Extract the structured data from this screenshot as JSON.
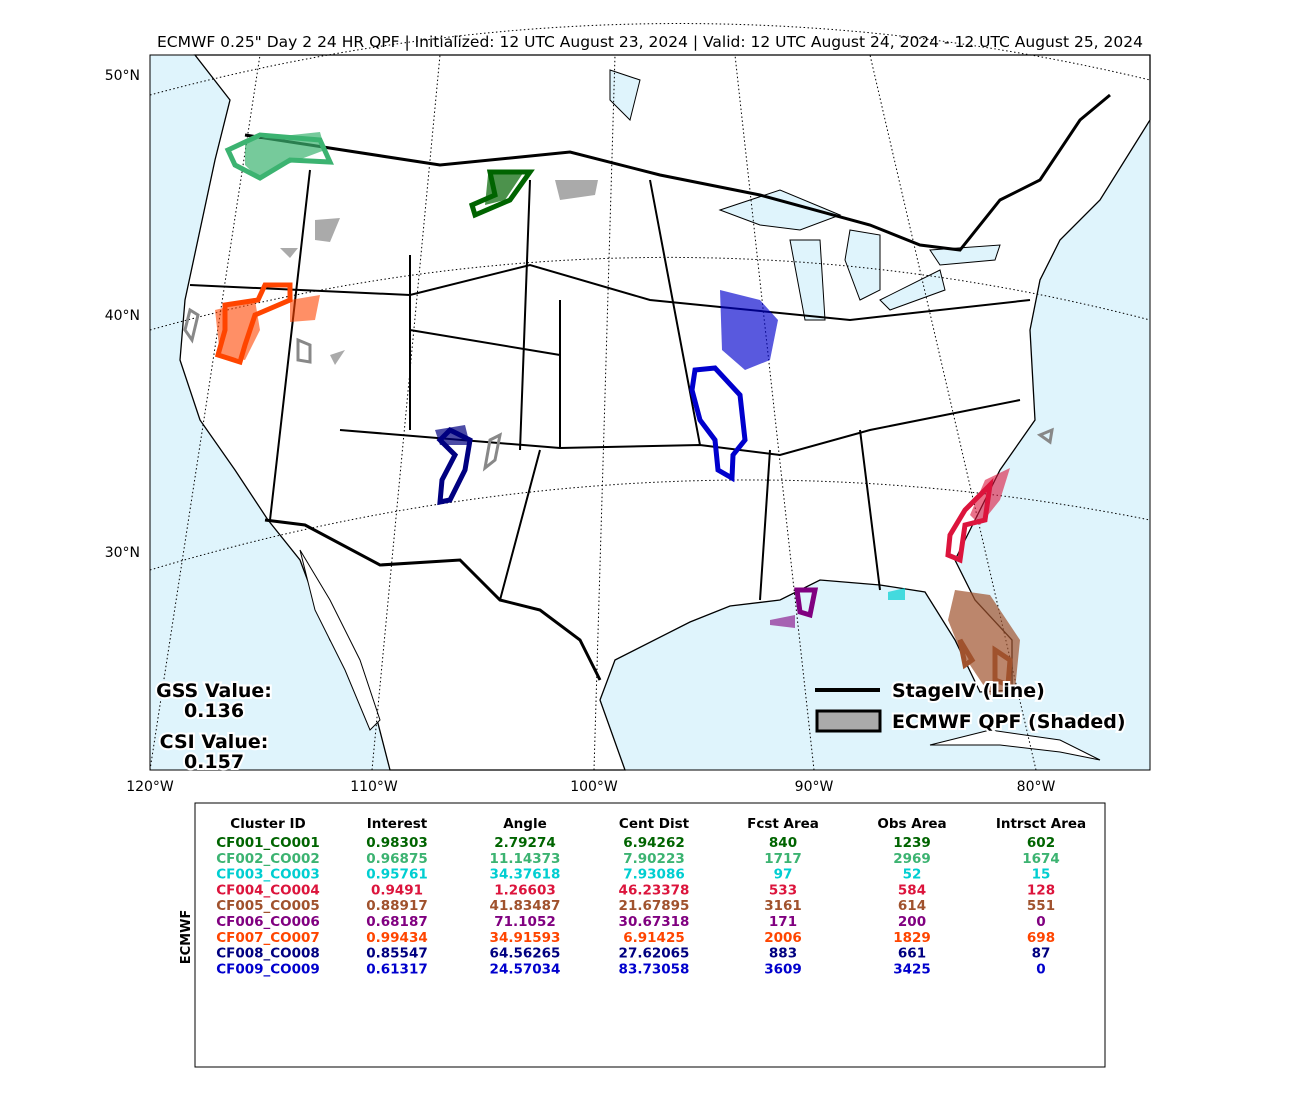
{
  "title": "ECMWF 0.25\" Day 2 24 HR QPF | Initialized: 12 UTC August 23, 2024 | Valid: 12 UTC August 24, 2024 - 12 UTC August 25, 2024",
  "map": {
    "lat_labels": [
      "50°N",
      "40°N",
      "30°N"
    ],
    "lon_labels": [
      "120°W",
      "110°W",
      "100°W",
      "90°W",
      "80°W"
    ]
  },
  "scores": {
    "gss_label": "GSS Value:",
    "gss_value": "0.136",
    "csi_label": "CSI Value:",
    "csi_value": "0.157"
  },
  "legend": {
    "line": "StageIV (Line)",
    "shaded": "ECMWF QPF (Shaded)"
  },
  "table": {
    "side_label": "ECMWF",
    "headers": [
      "Cluster ID",
      "Interest",
      "Angle",
      "Cent Dist",
      "Fcst Area",
      "Obs Area",
      "Intrsct Area"
    ],
    "rows": [
      {
        "color": "#006400",
        "cells": [
          "CF001_CO001",
          "0.98303",
          "2.79274",
          "6.94262",
          "840",
          "1239",
          "602"
        ]
      },
      {
        "color": "#3cb371",
        "cells": [
          "CF002_CO002",
          "0.96875",
          "11.14373",
          "7.90223",
          "1717",
          "2969",
          "1674"
        ]
      },
      {
        "color": "#00ced1",
        "cells": [
          "CF003_CO003",
          "0.95761",
          "34.37618",
          "7.93086",
          "97",
          "52",
          "15"
        ]
      },
      {
        "color": "#dc143c",
        "cells": [
          "CF004_CO004",
          "0.9491",
          "1.26603",
          "46.23378",
          "533",
          "584",
          "128"
        ]
      },
      {
        "color": "#a0522d",
        "cells": [
          "CF005_CO005",
          "0.88917",
          "41.83487",
          "21.67895",
          "3161",
          "614",
          "551"
        ]
      },
      {
        "color": "#800080",
        "cells": [
          "CF006_CO006",
          "0.68187",
          "71.1052",
          "30.67318",
          "171",
          "200",
          "0"
        ]
      },
      {
        "color": "#ff4500",
        "cells": [
          "CF007_CO007",
          "0.99434",
          "34.91593",
          "6.91425",
          "2006",
          "1829",
          "698"
        ]
      },
      {
        "color": "#000080",
        "cells": [
          "CF008_CO008",
          "0.85547",
          "64.56265",
          "27.62065",
          "883",
          "661",
          "87"
        ]
      },
      {
        "color": "#0000cd",
        "cells": [
          "CF009_CO009",
          "0.61317",
          "24.57034",
          "83.73058",
          "3609",
          "3425",
          "0"
        ]
      }
    ]
  }
}
